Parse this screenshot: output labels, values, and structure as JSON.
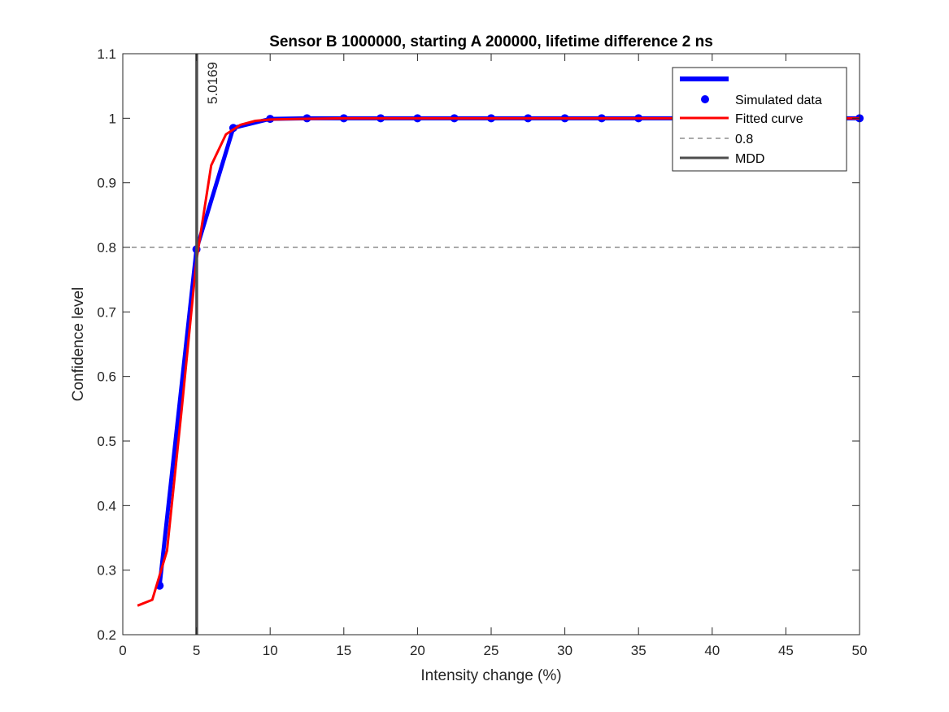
{
  "chart_data": {
    "type": "line",
    "title": "Sensor B 1000000, starting A 200000, lifetime difference 2 ns",
    "xlabel": "Intensity change (%)",
    "ylabel": "Confidence level",
    "xlim": [
      0,
      50
    ],
    "ylim": [
      0.2,
      1.1
    ],
    "xticks": [
      "0",
      "5",
      "10",
      "15",
      "20",
      "25",
      "30",
      "35",
      "40",
      "45",
      "50"
    ],
    "yticks": [
      "0.2",
      "0.3",
      "0.4",
      "0.5",
      "0.6",
      "0.7",
      "0.8",
      "0.9",
      "1",
      "1.1"
    ],
    "grid": false,
    "legend_position": "top-right",
    "series": [
      {
        "name": "",
        "style": "thick-line",
        "color": "#0000ff",
        "x": [
          2.5,
          5,
          7.5,
          10,
          12.5,
          15,
          17.5,
          20,
          22.5,
          25,
          27.5,
          30,
          32.5,
          35,
          37.5,
          40,
          42.5,
          45,
          47.5,
          50
        ],
        "y": [
          0.276,
          0.797,
          0.985,
          0.999,
          1.0,
          1.0,
          1.0,
          1.0,
          1.0,
          1.0,
          1.0,
          1.0,
          1.0,
          1.0,
          1.0,
          1.0,
          1.0,
          1.0,
          1.0,
          1.0
        ]
      },
      {
        "name": "Simulated data",
        "style": "markers",
        "color": "#0000ff",
        "x": [
          2.5,
          5,
          7.5,
          10,
          12.5,
          15,
          17.5,
          20,
          22.5,
          25,
          27.5,
          30,
          32.5,
          35,
          50
        ],
        "y": [
          0.276,
          0.797,
          0.985,
          0.999,
          1.0,
          1.0,
          1.0,
          1.0,
          1.0,
          1.0,
          1.0,
          1.0,
          1.0,
          1.0,
          1.0
        ]
      },
      {
        "name": "Fitted curve",
        "style": "line",
        "color": "#ff0000",
        "x": [
          1,
          2,
          3,
          4,
          5,
          6,
          7,
          8,
          9,
          10,
          12,
          15,
          20,
          25,
          30,
          35,
          40,
          45,
          50
        ],
        "y": [
          0.245,
          0.254,
          0.33,
          0.55,
          0.78,
          0.927,
          0.975,
          0.99,
          0.996,
          0.998,
          0.999,
          1.0,
          1.0,
          1.0,
          1.0,
          1.0,
          1.0,
          1.0,
          1.0
        ]
      },
      {
        "name": "0.8",
        "style": "dashed-hline",
        "color": "#555555",
        "y": 0.8
      },
      {
        "name": "MDD",
        "style": "vline",
        "color": "#4d4d4d",
        "x": 5.0169
      }
    ],
    "annotations": [
      {
        "text": "5.0169",
        "x": 5.0169,
        "y": 1.1
      }
    ]
  }
}
